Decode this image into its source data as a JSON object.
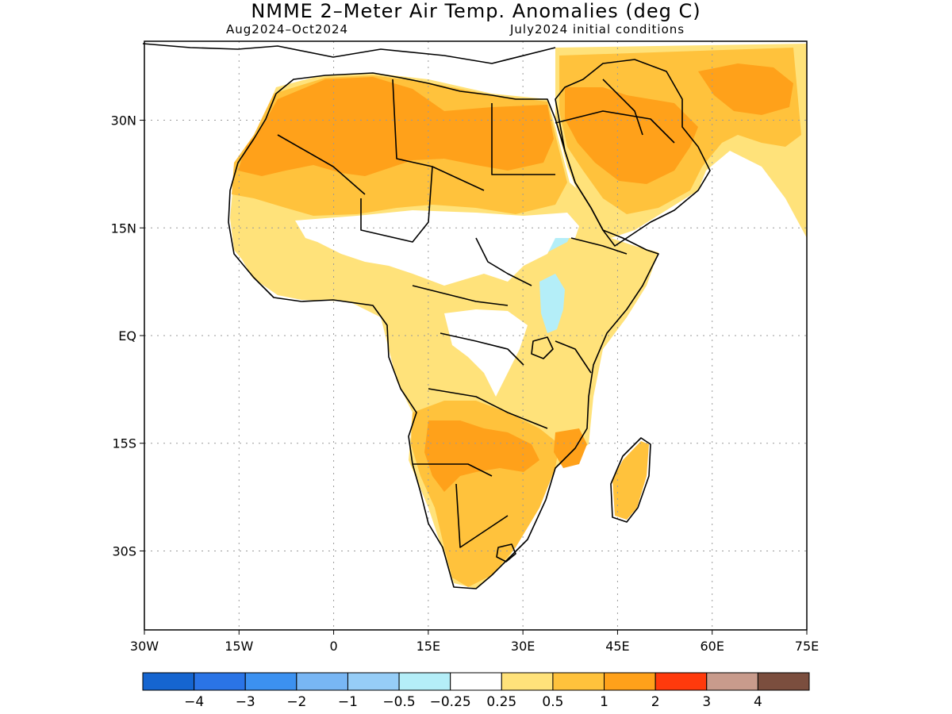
{
  "title": "NMME 2–Meter Air Temp. Anomalies (deg C)",
  "subtitle_left": "Aug2024–Oct2024",
  "subtitle_right": "July2024 initial conditions",
  "map": {
    "region": "Africa / Arabian Peninsula",
    "lat_range": [
      -41,
      41
    ],
    "lon_range": [
      -30,
      75
    ],
    "gridlines": "dotted",
    "lat_ticks": [
      {
        "lat": 30,
        "label": "30N"
      },
      {
        "lat": 15,
        "label": "15N"
      },
      {
        "lat": 0,
        "label": "EQ"
      },
      {
        "lat": -15,
        "label": "15S"
      },
      {
        "lat": -30,
        "label": "30S"
      }
    ],
    "lon_ticks": [
      {
        "lon": -30,
        "label": "30W"
      },
      {
        "lon": -15,
        "label": "15W"
      },
      {
        "lon": 0,
        "label": "0"
      },
      {
        "lon": 15,
        "label": "15E"
      },
      {
        "lon": 30,
        "label": "30E"
      },
      {
        "lon": 45,
        "label": "45E"
      },
      {
        "lon": 60,
        "label": "60E"
      },
      {
        "lon": 75,
        "label": "75E"
      }
    ]
  },
  "colorbar": {
    "colors": [
      "#1565d0",
      "#2a74e6",
      "#3c91f0",
      "#78b6f4",
      "#96cdf7",
      "#b4eef8",
      "#ffffff",
      "#ffe27a",
      "#ffc23c",
      "#ffa11a",
      "#ff3a0c",
      "#c89b8c",
      "#7b4e3e"
    ],
    "labels": [
      "−4",
      "−3",
      "−2",
      "−1",
      "−0.5",
      "−0.25",
      "0.25",
      "0.5",
      "1",
      "2",
      "3",
      "4"
    ]
  },
  "fill_colors": {
    "ocean": "#ffffff",
    "weak_warm": "#ffe27a",
    "warm": "#ffc23c",
    "hot": "#ffa11a",
    "cool": "#b4eef8",
    "coast": "#000000"
  }
}
